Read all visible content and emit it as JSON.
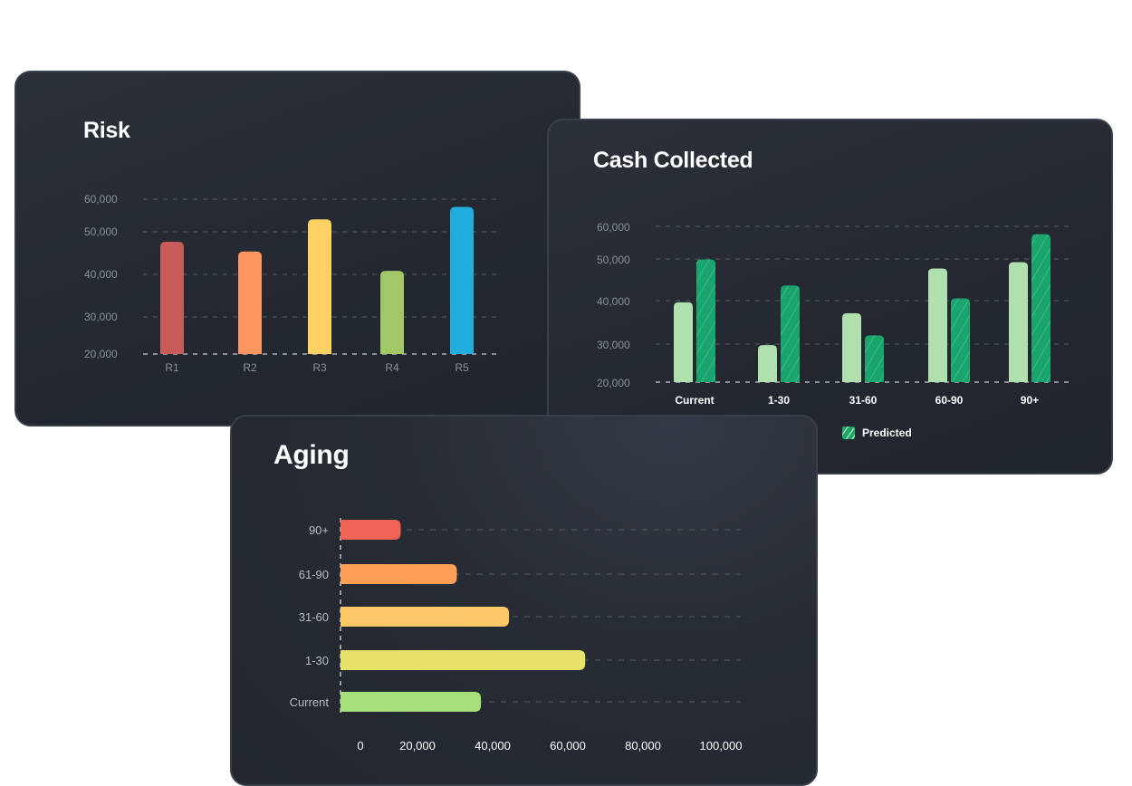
{
  "chart_data": [
    {
      "type": "bar",
      "title": "Risk",
      "categories": [
        "R1",
        "R2",
        "R3",
        "R4",
        "R5"
      ],
      "values": [
        49000,
        46500,
        54800,
        41500,
        58000
      ],
      "colors": [
        "#c85a5a",
        "#ff9560",
        "#fdd262",
        "#a2c865",
        "#21aedf"
      ],
      "ylim": [
        20000,
        60000
      ],
      "yticks": [
        "60,000",
        "50,000",
        "40,000",
        "30,000",
        "20,000"
      ],
      "grid": true
    },
    {
      "type": "bar",
      "title": "Cash Collected",
      "categories": [
        "Current",
        "1-30",
        "31-60",
        "60-90",
        "90+"
      ],
      "series": [
        {
          "values": [
            40500,
            29500,
            37700,
            49200,
            50800
          ],
          "color": "#afe0ad"
        },
        {
          "name": "Predicted",
          "values": [
            51500,
            44800,
            32000,
            41500,
            58000
          ],
          "color": "#19a56d",
          "pattern": "hatched"
        }
      ],
      "ylim": [
        20000,
        60000
      ],
      "yticks": [
        "60,000",
        "50,000",
        "40,000",
        "30,000",
        "20,000"
      ],
      "legend": "bottom",
      "grid": true
    },
    {
      "type": "bar",
      "orientation": "horizontal",
      "title": "Aging",
      "categories": [
        "90+",
        "61-90",
        "31-60",
        "1-30",
        "Current"
      ],
      "values": [
        15000,
        29000,
        42000,
        61000,
        35000
      ],
      "colors": [
        "#f06458",
        "#fb9e55",
        "#fcc865",
        "#e6e26a",
        "#a6e07a"
      ],
      "xlim": [
        0,
        100000
      ],
      "xticks": [
        "0",
        "20,000",
        "40,000",
        "60,000",
        "80,000",
        "100,000"
      ],
      "grid": true
    }
  ]
}
